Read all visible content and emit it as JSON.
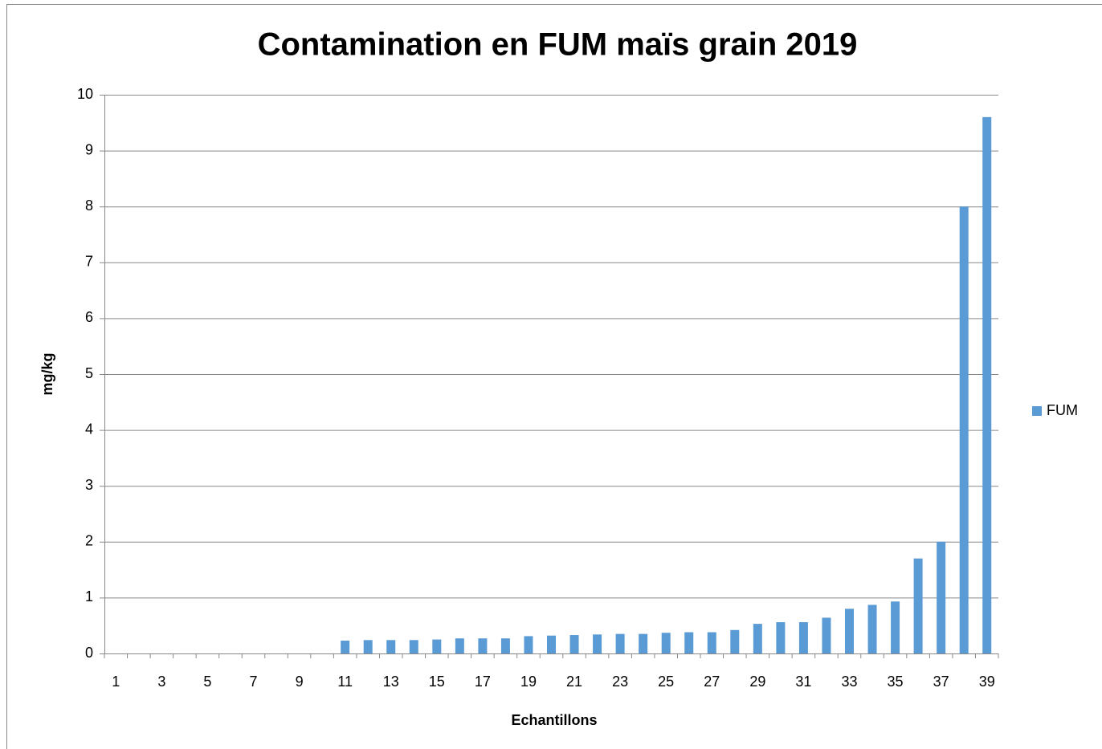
{
  "chart_data": {
    "type": "bar",
    "title": "Contamination en FUM maïs grain 2019",
    "x_label": "Echantillons",
    "y_label": "mg/kg",
    "categories": [
      1,
      null,
      3,
      null,
      5,
      null,
      7,
      null,
      9,
      null,
      11,
      null,
      13,
      null,
      15,
      null,
      17,
      null,
      19,
      null,
      21,
      null,
      23,
      null,
      25,
      null,
      27,
      null,
      29,
      null,
      31,
      null,
      33,
      null,
      35,
      null,
      37,
      null,
      39
    ],
    "series": [
      {
        "name": "FUM",
        "color": "#5b9bd5",
        "values": [
          0,
          0,
          0,
          0,
          0,
          0,
          0,
          0,
          0,
          0,
          0.23,
          0.24,
          0.24,
          0.24,
          0.25,
          0.27,
          0.27,
          0.27,
          0.31,
          0.32,
          0.33,
          0.34,
          0.35,
          0.35,
          0.37,
          0.38,
          0.38,
          0.42,
          0.53,
          0.56,
          0.56,
          0.64,
          0.8,
          0.87,
          0.93,
          1.7,
          2.0,
          8.0,
          9.6
        ]
      }
    ],
    "ylim": [
      0,
      10
    ],
    "yticks": [
      0,
      1,
      2,
      3,
      4,
      5,
      6,
      7,
      8,
      9,
      10
    ],
    "grid": true,
    "legend": "right"
  }
}
